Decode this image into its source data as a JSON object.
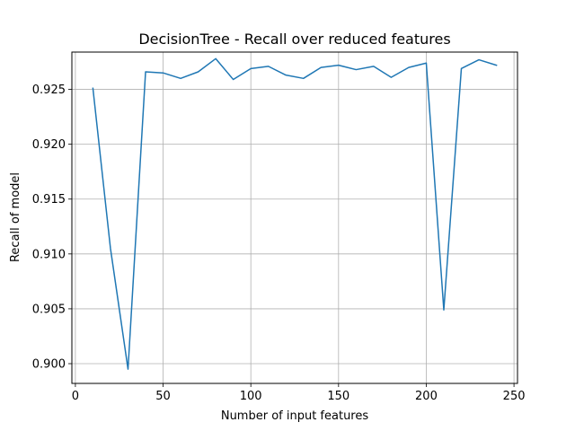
{
  "chart_data": {
    "type": "line",
    "title": "DecisionTree - Recall over reduced features",
    "xlabel": "Number of input features",
    "ylabel": "Recall of model",
    "xlim": [
      -2,
      252
    ],
    "ylim": [
      0.8982,
      0.9284
    ],
    "xticks": [
      0,
      50,
      100,
      150,
      200,
      250
    ],
    "yticks": [
      0.9,
      0.905,
      0.91,
      0.915,
      0.92,
      0.925
    ],
    "xtick_labels": [
      "0",
      "50",
      "100",
      "150",
      "200",
      "250"
    ],
    "ytick_labels": [
      "0.900",
      "0.905",
      "0.910",
      "0.915",
      "0.920",
      "0.925"
    ],
    "grid": true,
    "line_color": "#1f77b4",
    "series": [
      {
        "x": [
          10,
          20,
          30,
          40,
          50,
          60,
          70,
          80,
          90,
          100,
          110,
          120,
          130,
          140,
          150,
          160,
          170,
          180,
          190,
          200,
          210,
          220,
          230,
          240
        ],
        "values": [
          0.9251,
          0.9105,
          0.8995,
          0.9266,
          0.9265,
          0.926,
          0.9266,
          0.9278,
          0.9259,
          0.9269,
          0.9271,
          0.9263,
          0.926,
          0.927,
          0.9272,
          0.9268,
          0.9271,
          0.9261,
          0.927,
          0.9274,
          0.9049,
          0.9269,
          0.9277,
          0.9272
        ]
      }
    ]
  }
}
